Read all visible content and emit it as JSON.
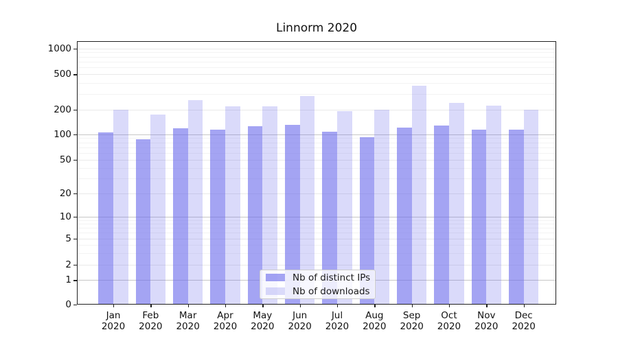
{
  "chart_data": {
    "type": "bar",
    "title": "Linnorm 2020",
    "categories": [
      "Jan 2020",
      "Feb 2020",
      "Mar 2020",
      "Apr 2020",
      "May 2020",
      "Jun 2020",
      "Jul 2020",
      "Aug 2020",
      "Sep 2020",
      "Oct 2020",
      "Nov 2020",
      "Dec 2020"
    ],
    "series": [
      {
        "name": "Nb of distinct IPs",
        "color": "rgba(108,108,235,0.62)",
        "values": [
          105,
          87,
          118,
          113,
          125,
          131,
          107,
          92,
          121,
          128,
          114,
          115
        ]
      },
      {
        "name": "Nb of downloads",
        "color": "rgba(108,108,235,0.25)",
        "values": [
          199,
          174,
          258,
          220,
          220,
          287,
          191,
          200,
          372,
          240,
          221,
          200
        ]
      }
    ],
    "yticks": [
      0,
      1,
      2,
      5,
      10,
      20,
      50,
      100,
      200,
      500,
      1000
    ],
    "ylim": [
      0,
      1200
    ],
    "yscale": "symlog",
    "grid": true,
    "legend_position": "inside-bottom-center",
    "colors": {
      "grid_decade": "#c6c6c6",
      "grid_major": "#e9e9e9",
      "grid_minor": "#f3f3f3",
      "axis": "#1f1f1f"
    }
  }
}
